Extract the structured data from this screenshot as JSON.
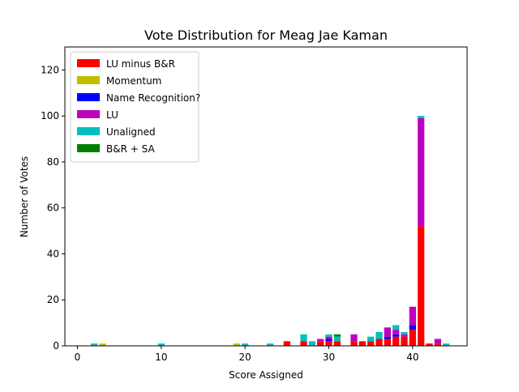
{
  "chart_data": {
    "type": "bar",
    "stacked": true,
    "title": "Vote Distribution for Meag Jae Kaman",
    "xlabel": "Score Assigned",
    "ylabel": "Number of Votes",
    "xlim": [
      -1.5,
      46.5
    ],
    "ylim": [
      0,
      130
    ],
    "xticks": [
      0,
      10,
      20,
      30,
      40
    ],
    "yticks": [
      0,
      20,
      40,
      60,
      80,
      100,
      120
    ],
    "grid": false,
    "legend_position": "top-left",
    "bar_width": 0.8,
    "series": [
      {
        "name": "LU minus B&R",
        "color": "#ff0000",
        "points": [
          [
            25,
            2
          ],
          [
            27,
            2
          ],
          [
            29,
            2
          ],
          [
            30,
            2
          ],
          [
            31,
            2
          ],
          [
            33,
            2
          ],
          [
            34,
            2
          ],
          [
            35,
            2
          ],
          [
            36,
            3
          ],
          [
            37,
            3
          ],
          [
            38,
            4
          ],
          [
            39,
            4
          ],
          [
            40,
            7
          ],
          [
            41,
            52
          ],
          [
            42,
            1
          ],
          [
            43,
            1
          ]
        ]
      },
      {
        "name": "Momentum",
        "color": "#bfbf00",
        "points": [
          [
            3,
            1
          ],
          [
            19,
            1
          ]
        ]
      },
      {
        "name": "Name Recognition?",
        "color": "#0000ff",
        "points": [
          [
            30,
            1
          ],
          [
            37,
            1
          ],
          [
            38,
            1
          ],
          [
            40,
            2
          ]
        ]
      },
      {
        "name": "LU",
        "color": "#bf00bf",
        "points": [
          [
            29,
            1
          ],
          [
            30,
            1
          ],
          [
            33,
            3
          ],
          [
            37,
            4
          ],
          [
            38,
            2
          ],
          [
            39,
            1
          ],
          [
            40,
            8
          ],
          [
            41,
            47
          ],
          [
            43,
            2
          ]
        ]
      },
      {
        "name": "Unaligned",
        "color": "#00bfbf",
        "points": [
          [
            2,
            1
          ],
          [
            10,
            1
          ],
          [
            20,
            1
          ],
          [
            23,
            1
          ],
          [
            27,
            3
          ],
          [
            28,
            2
          ],
          [
            30,
            1
          ],
          [
            31,
            2
          ],
          [
            35,
            2
          ],
          [
            36,
            3
          ],
          [
            38,
            2
          ],
          [
            39,
            1
          ],
          [
            41,
            1
          ],
          [
            44,
            1
          ]
        ]
      },
      {
        "name": "B&R + SA",
        "color": "#008000",
        "points": [
          [
            31,
            1
          ]
        ]
      }
    ]
  }
}
